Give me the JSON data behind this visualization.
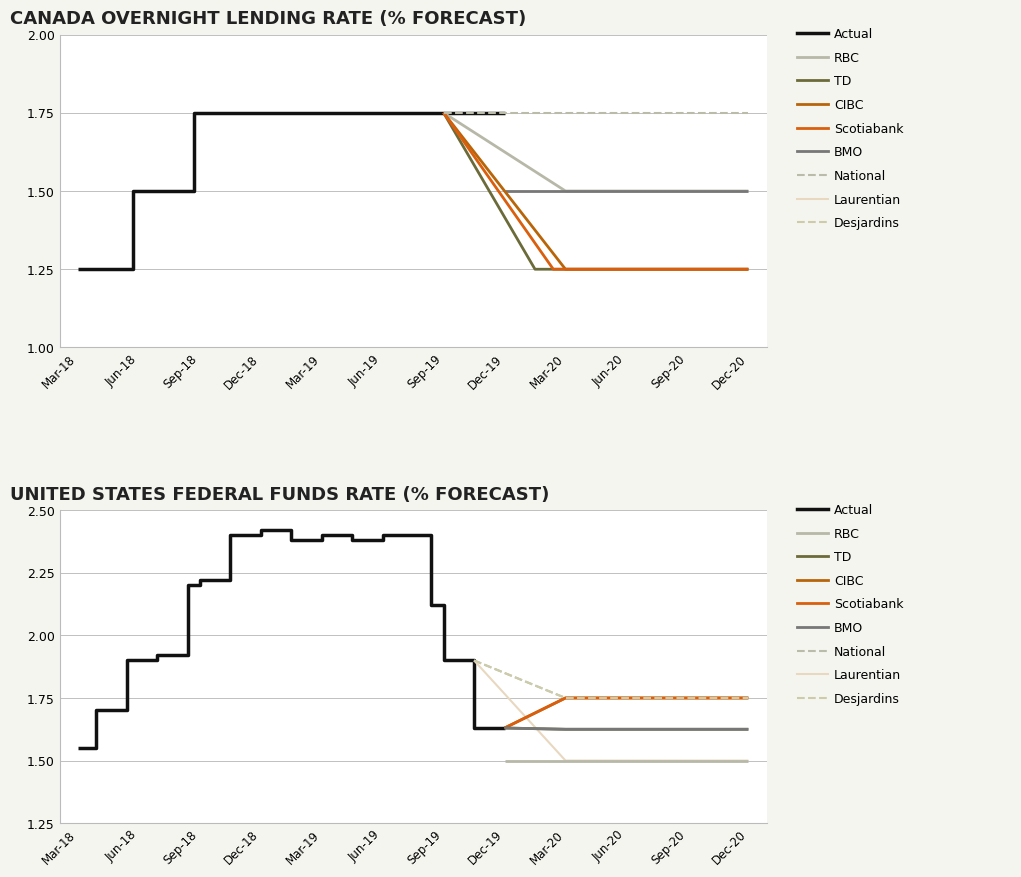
{
  "title1": "CANADA OVERNIGHT LENDING RATE (% FORECAST)",
  "title2": "UNITED STATES FEDERAL FUNDS RATE (% FORECAST)",
  "title_fontsize": 13,
  "title_fontweight": "bold",
  "background_color": "#f5f5f0",
  "plot_bg_color": "#ffffff",
  "border_color": "#999999",
  "xtick_labels": [
    "Mar-18",
    "Jun-18",
    "Sep-18",
    "Dec-18",
    "Mar-19",
    "Jun-19",
    "Sep-19",
    "Dec-19",
    "Mar-20",
    "Jun-20",
    "Sep-20",
    "Dec-20"
  ],
  "xtick_positions": [
    0,
    1,
    2,
    3,
    4,
    5,
    6,
    7,
    8,
    9,
    10,
    11
  ],
  "canada": {
    "ylim": [
      1.0,
      2.0
    ],
    "yticks": [
      1.0,
      1.25,
      1.5,
      1.75,
      2.0
    ],
    "series": [
      {
        "key": "actual",
        "x": [
          0,
          0.9,
          0.9,
          1.9,
          1.9,
          6,
          6,
          7
        ],
        "y": [
          1.25,
          1.25,
          1.5,
          1.5,
          1.75,
          1.75,
          1.75,
          1.75
        ],
        "color": "#111111",
        "lw": 2.5,
        "style": "solid"
      },
      {
        "key": "td",
        "x": [
          6,
          7.5,
          11
        ],
        "y": [
          1.75,
          1.25,
          1.25
        ],
        "color": "#6b6b3a",
        "lw": 2,
        "style": "solid"
      },
      {
        "key": "rbc",
        "x": [
          6,
          8,
          11
        ],
        "y": [
          1.75,
          1.5,
          1.5
        ],
        "color": "#b8b8a8",
        "lw": 2,
        "style": "solid"
      },
      {
        "key": "bmo",
        "x": [
          7,
          11
        ],
        "y": [
          1.5,
          1.5
        ],
        "color": "#777777",
        "lw": 2,
        "style": "solid"
      },
      {
        "key": "cibc",
        "x": [
          6,
          8,
          11
        ],
        "y": [
          1.75,
          1.25,
          1.25
        ],
        "color": "#b8650a",
        "lw": 2,
        "style": "solid"
      },
      {
        "key": "scotiabank",
        "x": [
          6,
          7.8,
          11
        ],
        "y": [
          1.75,
          1.25,
          1.25
        ],
        "color": "#d95f0e",
        "lw": 2,
        "style": "solid"
      },
      {
        "key": "national",
        "x": [
          6,
          11
        ],
        "y": [
          1.75,
          1.75
        ],
        "color": "#bbbbaa",
        "lw": 1.5,
        "style": "dashed"
      },
      {
        "key": "laurentian",
        "x": [],
        "y": [],
        "color": "#e8d8c0",
        "lw": 1.5,
        "style": "solid"
      },
      {
        "key": "desjardins",
        "x": [],
        "y": [],
        "color": "#ccccaa",
        "lw": 1.5,
        "style": "dashed"
      }
    ]
  },
  "us": {
    "ylim": [
      1.25,
      2.5
    ],
    "yticks": [
      1.25,
      1.5,
      1.75,
      2.0,
      2.25,
      2.5
    ],
    "series": [
      {
        "key": "actual",
        "x": [
          0,
          0.3,
          0.3,
          0.8,
          0.8,
          1.3,
          1.3,
          1.8,
          1.8,
          2.0,
          2.0,
          2.5,
          2.5,
          3.0,
          3.0,
          3.5,
          3.5,
          4.0,
          4.0,
          4.5,
          4.5,
          5.0,
          5.0,
          5.5,
          5.5,
          5.8,
          5.8,
          6.0,
          6.0,
          6.5,
          6.5,
          7.0
        ],
        "y": [
          1.55,
          1.55,
          1.7,
          1.7,
          1.9,
          1.9,
          1.92,
          1.92,
          2.2,
          2.2,
          2.22,
          2.22,
          2.4,
          2.4,
          2.42,
          2.42,
          2.38,
          2.38,
          2.4,
          2.4,
          2.38,
          2.38,
          2.4,
          2.4,
          2.4,
          2.4,
          2.12,
          2.12,
          1.9,
          1.9,
          1.63,
          1.63
        ],
        "color": "#111111",
        "lw": 2.5,
        "style": "solid"
      },
      {
        "key": "national",
        "x": [
          6.5,
          8,
          11
        ],
        "y": [
          1.9,
          1.75,
          1.75
        ],
        "color": "#bbbbaa",
        "lw": 1.5,
        "style": "dashed"
      },
      {
        "key": "laurentian",
        "x": [
          6.5,
          8,
          11
        ],
        "y": [
          1.9,
          1.5,
          1.5
        ],
        "color": "#e8d8c0",
        "lw": 1.5,
        "style": "solid"
      },
      {
        "key": "cibc",
        "x": [
          7,
          8,
          11
        ],
        "y": [
          1.63,
          1.75,
          1.75
        ],
        "color": "#b8650a",
        "lw": 2,
        "style": "solid"
      },
      {
        "key": "scotiabank",
        "x": [
          7,
          8,
          11
        ],
        "y": [
          1.63,
          1.75,
          1.75
        ],
        "color": "#d95f0e",
        "lw": 2,
        "style": "solid"
      },
      {
        "key": "td",
        "x": [
          7,
          8,
          11
        ],
        "y": [
          1.63,
          1.625,
          1.625
        ],
        "color": "#6b6b3a",
        "lw": 2,
        "style": "solid"
      },
      {
        "key": "bmo",
        "x": [
          7,
          8,
          11
        ],
        "y": [
          1.63,
          1.625,
          1.625
        ],
        "color": "#777777",
        "lw": 2,
        "style": "solid"
      },
      {
        "key": "rbc",
        "x": [
          7,
          11
        ],
        "y": [
          1.5,
          1.5
        ],
        "color": "#b8b8a8",
        "lw": 2,
        "style": "solid"
      },
      {
        "key": "desjardins",
        "x": [
          6.5,
          8,
          11
        ],
        "y": [
          1.9,
          1.75,
          1.75
        ],
        "color": "#ccccaa",
        "lw": 1.5,
        "style": "dashed"
      }
    ]
  },
  "legend_labels": [
    "Actual",
    "RBC",
    "TD",
    "CIBC",
    "Scotiabank",
    "BMO",
    "National",
    "Laurentian",
    "Desjardins"
  ],
  "legend_colors": [
    "#111111",
    "#b8b8a8",
    "#6b6b3a",
    "#b8650a",
    "#d95f0e",
    "#777777",
    "#bbbbaa",
    "#e8d8c0",
    "#ccccaa"
  ],
  "legend_styles": [
    "solid",
    "solid",
    "solid",
    "solid",
    "solid",
    "solid",
    "dashed",
    "solid",
    "dashed"
  ],
  "legend_lw": [
    2.5,
    2,
    2,
    2,
    2,
    2,
    1.5,
    1.5,
    1.5
  ]
}
